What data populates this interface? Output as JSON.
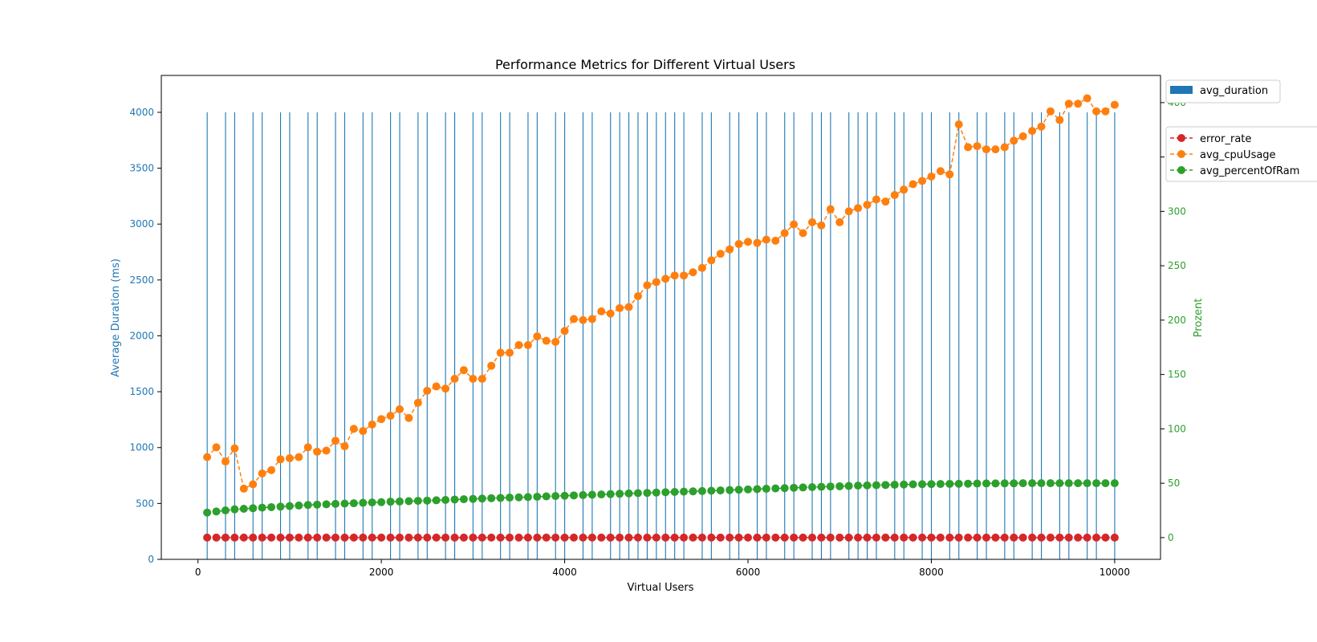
{
  "chart_data": {
    "type": "bar+line",
    "title": "Performance Metrics for Different Virtual Users",
    "xlabel": "Virtual Users",
    "ylabel_left": "Average Duration (ms)",
    "ylabel_right": "Prozent",
    "xlim": [
      -400,
      10500
    ],
    "ylim_left": [
      0,
      4330
    ],
    "ylim_right": [
      -20,
      425
    ],
    "xticks": [
      0,
      2000,
      4000,
      6000,
      8000,
      10000
    ],
    "yticks_left": [
      0,
      500,
      1000,
      1500,
      2000,
      2500,
      3000,
      3500,
      4000
    ],
    "yticks_right": [
      0,
      50,
      100,
      150,
      200,
      250,
      300,
      350,
      400
    ],
    "colors": {
      "bar": "#1f77b4",
      "left_axis": "#1f77b4",
      "right_axis": "#2ca02c",
      "error_rate": "#d62728",
      "avg_cpuUsage": "#ff7f0e",
      "avg_percentOfRam": "#2ca02c"
    },
    "bar_series": {
      "name": "avg_duration",
      "x": [
        100,
        300,
        400,
        600,
        700,
        900,
        1000,
        1200,
        1300,
        1500,
        1600,
        1800,
        1900,
        2100,
        2200,
        2400,
        2500,
        2700,
        2800,
        3000,
        3100,
        3300,
        3400,
        3600,
        3700,
        3900,
        4000,
        4200,
        4300,
        4500,
        4600,
        4700,
        4800,
        4900,
        5000,
        5100,
        5200,
        5300,
        5500,
        5600,
        5800,
        5900,
        6100,
        6200,
        6400,
        6500,
        6700,
        6800,
        6900,
        7100,
        7200,
        7300,
        7400,
        7600,
        7700,
        7900,
        8000,
        8200,
        8300,
        8500,
        8600,
        8800,
        8900,
        9100,
        9200,
        9400,
        9500,
        9700,
        9800,
        10000
      ],
      "values": [
        4000,
        4000,
        4000,
        4000,
        4000,
        4000,
        4000,
        4000,
        4000,
        4000,
        4000,
        4000,
        4000,
        4000,
        4000,
        4000,
        4000,
        4000,
        4000,
        4000,
        4000,
        4000,
        4000,
        4000,
        4000,
        4000,
        4000,
        4000,
        4000,
        4000,
        4000,
        4000,
        4000,
        4000,
        4000,
        4000,
        4000,
        4000,
        4000,
        4000,
        4000,
        4000,
        4000,
        4000,
        4000,
        4000,
        4000,
        4000,
        4000,
        4000,
        4000,
        4000,
        4000,
        4000,
        4000,
        4000,
        4000,
        4000,
        4000,
        4000,
        4000,
        4000,
        4000,
        4000,
        4000,
        4000,
        4000,
        4000,
        4000,
        4000
      ]
    },
    "x": [
      100,
      200,
      300,
      400,
      500,
      600,
      700,
      800,
      900,
      1000,
      1100,
      1200,
      1300,
      1400,
      1500,
      1600,
      1700,
      1800,
      1900,
      2000,
      2100,
      2200,
      2300,
      2400,
      2500,
      2600,
      2700,
      2800,
      2900,
      3000,
      3100,
      3200,
      3300,
      3400,
      3500,
      3600,
      3700,
      3800,
      3900,
      4000,
      4100,
      4200,
      4300,
      4400,
      4500,
      4600,
      4700,
      4800,
      4900,
      5000,
      5100,
      5200,
      5300,
      5400,
      5500,
      5600,
      5700,
      5800,
      5900,
      6000,
      6100,
      6200,
      6300,
      6400,
      6500,
      6600,
      6700,
      6800,
      6900,
      7000,
      7100,
      7200,
      7300,
      7400,
      7500,
      7600,
      7700,
      7800,
      7900,
      8000,
      8100,
      8200,
      8300,
      8400,
      8500,
      8600,
      8700,
      8800,
      8900,
      9000,
      9100,
      9200,
      9300,
      9400,
      9500,
      9600,
      9700,
      9800,
      9900,
      10000
    ],
    "line_series": [
      {
        "name": "error_rate",
        "values": [
          0,
          0,
          0,
          0,
          0,
          0,
          0,
          0,
          0,
          0,
          0,
          0,
          0,
          0,
          0,
          0,
          0,
          0,
          0,
          0,
          0,
          0,
          0,
          0,
          0,
          0,
          0,
          0,
          0,
          0,
          0,
          0,
          0,
          0,
          0,
          0,
          0,
          0,
          0,
          0,
          0,
          0,
          0,
          0,
          0,
          0,
          0,
          0,
          0,
          0,
          0,
          0,
          0,
          0,
          0,
          0,
          0,
          0,
          0,
          0,
          0,
          0,
          0,
          0,
          0,
          0,
          0,
          0,
          0,
          0,
          0,
          0,
          0,
          0,
          0,
          0,
          0,
          0,
          0,
          0,
          0,
          0,
          0,
          0,
          0,
          0,
          0,
          0,
          0,
          0,
          0,
          0,
          0,
          0,
          0,
          0,
          0,
          0,
          0,
          0
        ]
      },
      {
        "name": "avg_cpuUsage",
        "values": [
          74,
          83,
          70,
          82,
          45,
          49,
          59,
          62,
          72,
          73,
          74,
          83,
          79,
          80,
          89,
          84,
          100,
          98,
          104,
          109,
          112,
          118,
          110,
          124,
          135,
          139,
          137,
          146,
          154,
          146,
          146,
          158,
          170,
          170,
          177,
          177,
          185,
          181,
          180,
          190,
          201,
          200,
          201,
          208,
          206,
          211,
          212,
          222,
          232,
          235,
          238,
          241,
          241,
          244,
          248,
          255,
          261,
          265,
          270,
          272,
          271,
          274,
          273,
          280,
          288,
          280,
          290,
          287,
          302,
          290,
          300,
          303,
          306,
          311,
          309,
          315,
          320,
          325,
          328,
          332,
          337,
          334,
          380,
          359,
          360,
          357,
          357,
          359,
          365,
          369,
          374,
          378,
          392,
          384,
          399,
          399,
          404,
          392,
          392,
          398
        ]
      },
      {
        "name": "avg_percentOfRam",
        "values": [
          23,
          24,
          25,
          26,
          26.5,
          27,
          27.5,
          28,
          28.5,
          29,
          29.5,
          30,
          30.3,
          30.6,
          31,
          31.3,
          31.6,
          32,
          32.3,
          32.6,
          33,
          33.2,
          33.5,
          33.8,
          34,
          34.3,
          34.6,
          35,
          35.3,
          35.6,
          35.9,
          36.2,
          36.5,
          36.8,
          37,
          37.3,
          37.6,
          37.9,
          38.2,
          38.5,
          38.8,
          39.1,
          39.4,
          39.7,
          40,
          40.3,
          40.6,
          40.9,
          41.1,
          41.4,
          41.7,
          42,
          42.3,
          42.5,
          42.8,
          43.1,
          43.4,
          43.7,
          44,
          44.3,
          44.6,
          44.9,
          45.2,
          45.5,
          45.8,
          46.1,
          46.4,
          46.7,
          47,
          47.2,
          47.5,
          47.8,
          48,
          48.2,
          48.4,
          48.6,
          48.8,
          49,
          49.1,
          49.2,
          49.3,
          49.4,
          49.5,
          49.6,
          49.7,
          49.8,
          49.8,
          49.9,
          49.9,
          50,
          50,
          50,
          50,
          50,
          50,
          50,
          50,
          50,
          50,
          50
        ]
      }
    ],
    "legend_bars": [
      "avg_duration"
    ],
    "legend_lines": [
      "error_rate",
      "avg_cpuUsage",
      "avg_percentOfRam"
    ]
  }
}
